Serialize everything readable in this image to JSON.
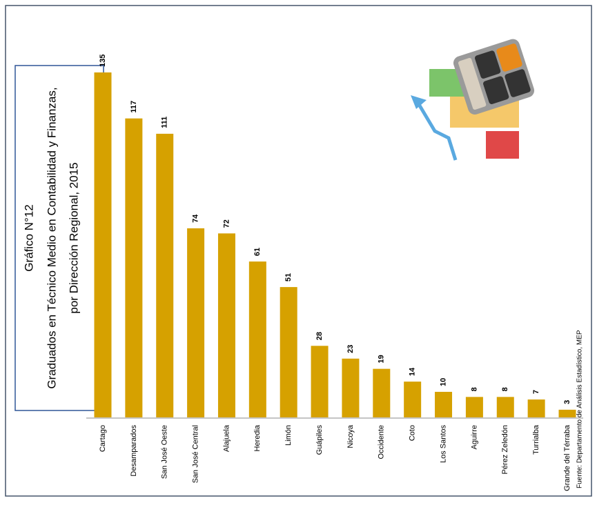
{
  "chart_data": {
    "type": "bar",
    "title": "Gráfico N°12",
    "subtitle": [
      "Graduados en Técnico Medio en Contabilidad y Finanzas,",
      "por Dirección Regional, 2015"
    ],
    "source": "Fuente: Departamento de Análisis Estadístico, MEP",
    "categories": [
      "Cartago",
      "Desamparados",
      "San José Oeste",
      "San José Central",
      "Alajuela",
      "Heredia",
      "Limón",
      "Guápiles",
      "Nicoya",
      "Occidente",
      "Coto",
      "Los Santos",
      "Aguirre",
      "Pérez Zeledón",
      "Turrialba",
      "Grande del Térraba"
    ],
    "values": [
      135,
      117,
      111,
      74,
      72,
      61,
      51,
      28,
      23,
      19,
      14,
      10,
      8,
      8,
      7,
      3
    ],
    "color": "#d6a100"
  }
}
